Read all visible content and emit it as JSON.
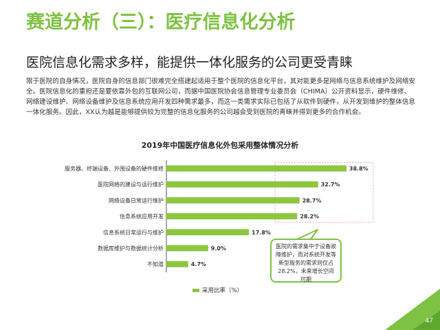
{
  "slide": {
    "title": "赛道分析（三）：医疗信息化分析",
    "subtitle": "医院信息化需求多样，能提供一体化服务的公司更受青睐",
    "paragraph": "限于医院的自身情况，医院自身的信息部门很难完全搭建起适用于整个医院的信息化平台，其对能更多是网络与信息系统维护及网络安全。医院信息化的重担还是要依靠外包的互联网公司，而据中国医院协会信息管理专业委员会（CHIMA）公开资料显示，硬件维修、网络建设维护、网络设备维护及信息系统应用开发四种需求最多，而这一类需求实际已包括了从软件到硬件，从开发到维护的整体信息一体化服务。因此，XX认为越是能够提供较为完整的信息化服务的公司越会受到医院的青睐并得到更多的合作机会。",
    "callout": "医院的需求集中于设备故障维护，而对系统开发等新型服务的需求则仅占28.2%，未来增长空间可期",
    "page_number": "47",
    "accent_color": "#7dc242",
    "bar_color": "#8dc63f",
    "highlight_border_color": "#e8a0a8"
  },
  "chart_data": {
    "type": "bar",
    "orientation": "horizontal",
    "title": "2019年中国医疗信息化外包采用整体情况分析",
    "categories": [
      "服务器、终端设备、外围设备的硬件维修",
      "医院网络的建设与运行维护",
      "网络设备日常运行维护",
      "信息系统应用开发",
      "信息系统日常运行与维护",
      "数据库维护与数据统计分析",
      "不知道"
    ],
    "series": [
      {
        "name": "采用比率（%）",
        "values": [
          38.8,
          32.7,
          28.7,
          28.2,
          17.8,
          9.0,
          4.7
        ]
      }
    ],
    "value_labels": [
      "38.8%",
      "32.7%",
      "28.7%",
      "28.2%",
      "17.8%",
      "9.0%",
      "4.7%"
    ],
    "xlim": [
      0,
      40
    ],
    "grid": false,
    "legend_position": "bottom",
    "highlighted_categories": [
      0,
      1,
      2,
      3
    ]
  }
}
